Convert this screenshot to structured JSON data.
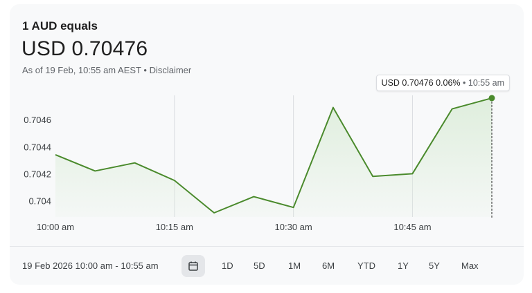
{
  "header": {
    "label": "1 AUD equals",
    "rate": "USD 0.70476",
    "as_of": "As of 19 Feb, 10:55 am AEST",
    "separator": "•",
    "disclaimer": "Disclaimer"
  },
  "tooltip": {
    "value": "USD 0.70476 0.06%",
    "separator": "•",
    "time": "10:55 am"
  },
  "footer": {
    "range": "19 Feb 2026 10:00 am - 10:55 am",
    "calendar_icon": "calendar-icon",
    "periods": [
      "1D",
      "5D",
      "1M",
      "6M",
      "YTD",
      "1Y",
      "5Y",
      "Max"
    ]
  },
  "colors": {
    "line": "#4a8a2c",
    "fill": "#dfeedd",
    "card": "#f8f9fa"
  },
  "chart_data": {
    "type": "area",
    "x_tick_labels": [
      "10:00 am",
      "10:15 am",
      "10:30 am",
      "10:45 am"
    ],
    "y_tick_labels": [
      "0.704",
      "0.7042",
      "0.7044",
      "0.7046"
    ],
    "y_ticks": [
      0.704,
      0.7042,
      0.7044,
      0.7046
    ],
    "ylim": [
      0.70391,
      0.70478
    ],
    "x_minutes_range": [
      0,
      55
    ],
    "x_tick_minutes": [
      0,
      15,
      30,
      45
    ],
    "points": [
      {
        "t": 0,
        "v": 0.70434
      },
      {
        "t": 5,
        "v": 0.70422
      },
      {
        "t": 10,
        "v": 0.70428
      },
      {
        "t": 15,
        "v": 0.70415
      },
      {
        "t": 20,
        "v": 0.70391
      },
      {
        "t": 25,
        "v": 0.70403
      },
      {
        "t": 30,
        "v": 0.70395
      },
      {
        "t": 35,
        "v": 0.70469
      },
      {
        "t": 40,
        "v": 0.70418
      },
      {
        "t": 45,
        "v": 0.7042
      },
      {
        "t": 50,
        "v": 0.70468
      },
      {
        "t": 55,
        "v": 0.70476
      }
    ],
    "grid": "vertical",
    "highlight": {
      "t": 55,
      "v": 0.70476
    }
  }
}
